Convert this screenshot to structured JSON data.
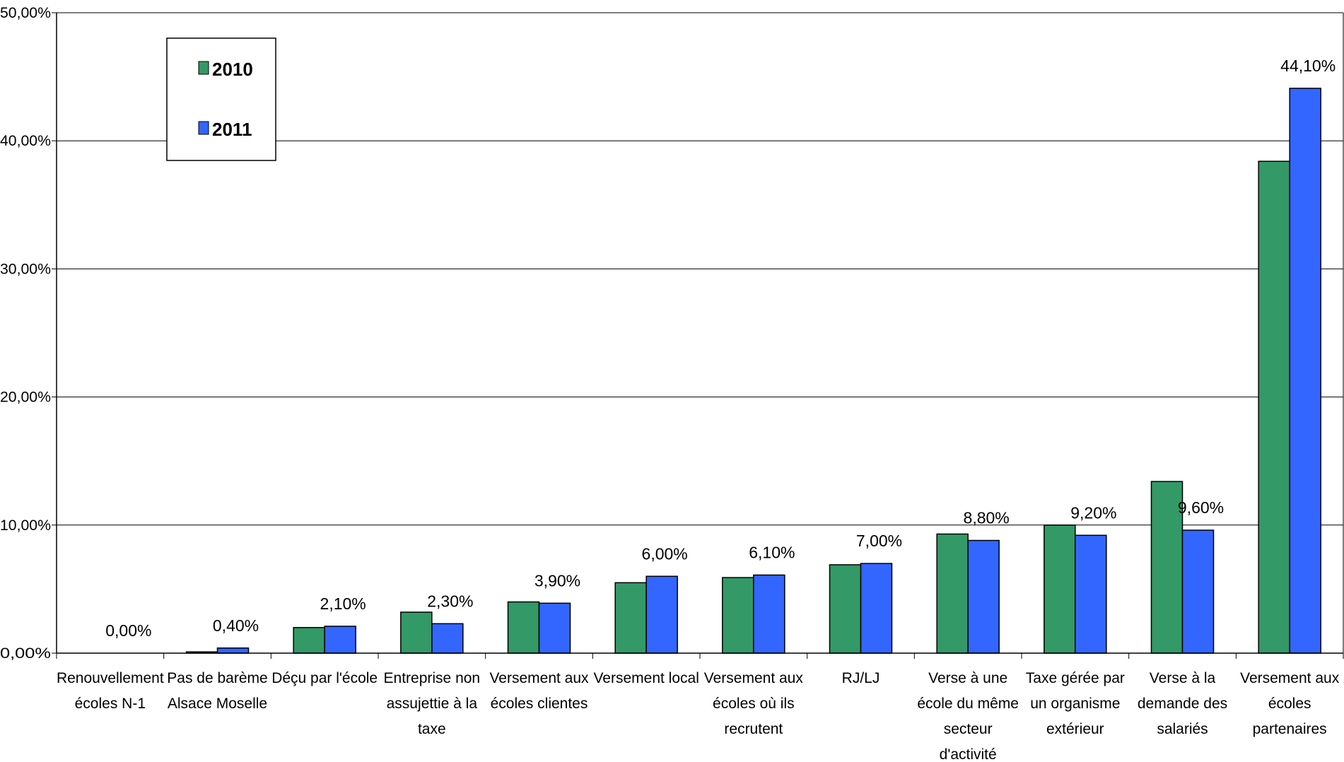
{
  "chart_data": {
    "type": "bar",
    "title": "",
    "xlabel": "",
    "ylabel": "",
    "ylim": [
      0,
      50
    ],
    "y_ticks": [
      "0,00%",
      "10,00%",
      "20,00%",
      "30,00%",
      "40,00%",
      "50,00%"
    ],
    "grid": true,
    "legend_position": "top-left",
    "categories": [
      [
        "Renouvellement",
        "écoles N-1"
      ],
      [
        "Pas de barème",
        "Alsace Moselle"
      ],
      [
        "Déçu par l'école"
      ],
      [
        "Entreprise non",
        "assujettie à la",
        "taxe"
      ],
      [
        "Versement aux",
        "écoles clientes"
      ],
      [
        "Versement local"
      ],
      [
        "Versement aux",
        "écoles où ils",
        "recrutent"
      ],
      [
        "RJ/LJ"
      ],
      [
        "Verse à une",
        "école du même",
        "secteur",
        "d'activité"
      ],
      [
        "Taxe gérée par",
        "un organisme",
        "extérieur"
      ],
      [
        "Verse à la",
        "demande des",
        "salariés"
      ],
      [
        "Versement aux",
        "écoles",
        "partenaires"
      ]
    ],
    "series": [
      {
        "name": "2010",
        "color": "#339966",
        "values": [
          0.0,
          0.1,
          2.0,
          3.2,
          4.0,
          5.5,
          5.9,
          6.9,
          9.3,
          10.0,
          13.4,
          38.4
        ]
      },
      {
        "name": "2011",
        "color": "#3366FF",
        "values": [
          0.0,
          0.4,
          2.1,
          2.3,
          3.9,
          6.0,
          6.1,
          7.0,
          8.8,
          9.2,
          9.6,
          44.1
        ]
      }
    ],
    "data_labels_2011": [
      "0,00%",
      "0,40%",
      "2,10%",
      "2,30%",
      "3,90%",
      "6,00%",
      "6,10%",
      "7,00%",
      "8,80%",
      "9,20%",
      "9,60%",
      "44,10%"
    ]
  }
}
